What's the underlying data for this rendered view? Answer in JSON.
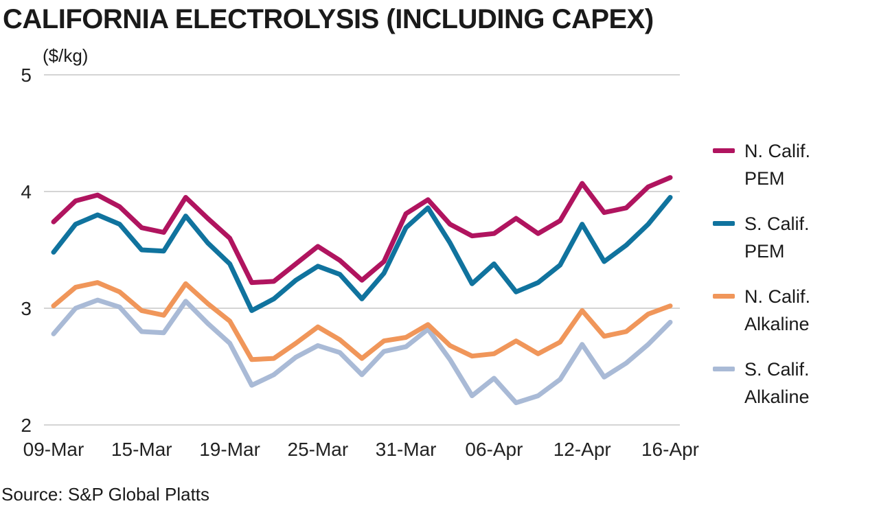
{
  "chart_data": {
    "type": "line",
    "title": "CALIFORNIA ELECTROLYSIS (INCLUDING CAPEX)",
    "ylabel": "($/kg)",
    "xlabel": "",
    "source": "Source: S&P Global Platts",
    "ylim": [
      2,
      5
    ],
    "yticks": [
      2,
      3,
      4,
      5
    ],
    "xtick_labels": [
      "09-Mar",
      "15-Mar",
      "19-Mar",
      "25-Mar",
      "31-Mar",
      "06-Apr",
      "12-Apr",
      "16-Apr"
    ],
    "xtick_indices": [
      0,
      4,
      8,
      12,
      16,
      20,
      24,
      28
    ],
    "grid": true,
    "legend_position": "right",
    "series": [
      {
        "name": "N. Calif. PEM",
        "label_lines": [
          "N. Calif.",
          "PEM"
        ],
        "color": "#b0145f",
        "values": [
          3.74,
          3.92,
          3.97,
          3.87,
          3.69,
          3.65,
          3.95,
          3.77,
          3.6,
          3.22,
          3.23,
          3.38,
          3.53,
          3.41,
          3.24,
          3.4,
          3.81,
          3.93,
          3.72,
          3.62,
          3.64,
          3.77,
          3.64,
          3.75,
          4.07,
          3.82,
          3.86,
          4.04,
          4.12
        ]
      },
      {
        "name": "S. Calif. PEM",
        "label_lines": [
          "S. Calif.",
          "PEM"
        ],
        "color": "#10739e",
        "values": [
          3.48,
          3.72,
          3.8,
          3.72,
          3.5,
          3.49,
          3.79,
          3.56,
          3.38,
          2.98,
          3.08,
          3.24,
          3.36,
          3.29,
          3.08,
          3.3,
          3.69,
          3.86,
          3.56,
          3.21,
          3.38,
          3.14,
          3.22,
          3.37,
          3.72,
          3.4,
          3.54,
          3.72,
          3.95
        ]
      },
      {
        "name": "N. Calif. Alkaline",
        "label_lines": [
          "N. Calif.",
          "Alkaline"
        ],
        "color": "#f0965a",
        "values": [
          3.02,
          3.18,
          3.22,
          3.14,
          2.98,
          2.94,
          3.21,
          3.04,
          2.89,
          2.56,
          2.57,
          2.7,
          2.84,
          2.73,
          2.57,
          2.72,
          2.75,
          2.86,
          2.68,
          2.59,
          2.61,
          2.72,
          2.61,
          2.71,
          2.98,
          2.76,
          2.8,
          2.95,
          3.02
        ]
      },
      {
        "name": "S. Calif. Alkaline",
        "label_lines": [
          "S. Calif.",
          "Alkaline"
        ],
        "color": "#a9bad6",
        "values": [
          2.78,
          3.0,
          3.07,
          3.01,
          2.8,
          2.79,
          3.06,
          2.87,
          2.7,
          2.34,
          2.43,
          2.58,
          2.68,
          2.62,
          2.43,
          2.63,
          2.67,
          2.82,
          2.56,
          2.25,
          2.4,
          2.19,
          2.25,
          2.39,
          2.69,
          2.41,
          2.53,
          2.69,
          2.88
        ]
      }
    ]
  }
}
